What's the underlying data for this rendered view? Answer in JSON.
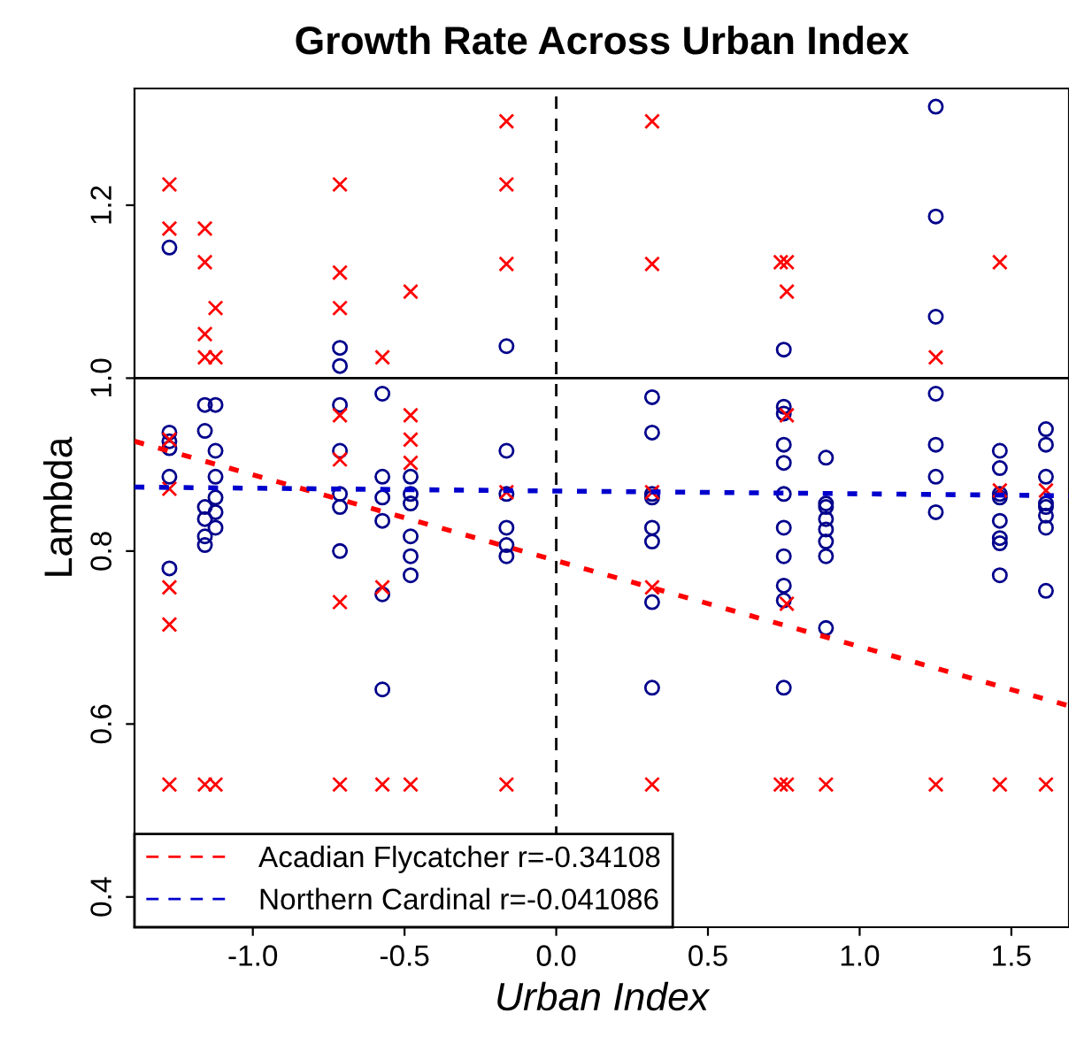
{
  "chart_data": {
    "type": "scatter",
    "title": "Growth Rate Across Urban Index",
    "xlabel": "Urban Index",
    "ylabel": "Lambda",
    "xlim": [
      -1.39,
      1.69
    ],
    "ylim": [
      0.365,
      1.335
    ],
    "xticks": [
      {
        "value": -1,
        "label": "-1.0"
      },
      {
        "value": -0.5,
        "label": "-0.5"
      },
      {
        "value": 0,
        "label": "0.0"
      },
      {
        "value": 0.5,
        "label": "0.5"
      },
      {
        "value": 1,
        "label": "1.0"
      },
      {
        "value": 1.5,
        "label": "1.5"
      }
    ],
    "yticks": [
      0.4,
      0.6,
      0.8,
      {
        "value": 1,
        "label": "1.0"
      },
      1.2
    ],
    "grid": false,
    "legend": "bottom left",
    "ref_lines": [
      {
        "axis": "y",
        "value": 1,
        "color": "#000000",
        "line_style": "solid"
      },
      {
        "axis": "x",
        "value": 0,
        "color": "#000000",
        "line_style": "dashed"
      }
    ],
    "series": [
      {
        "marker": "cross",
        "color": "#ff0000",
        "x": [
          -1.275,
          -1.275,
          -1.275,
          -1.275,
          -1.275,
          -1.275,
          -1.275,
          -1.158,
          -1.158,
          -1.158,
          -1.158,
          -1.158,
          -1.123,
          -1.123,
          -1.123,
          -0.713,
          -0.713,
          -0.713,
          -0.713,
          -0.713,
          -0.713,
          -0.713,
          -0.573,
          -0.573,
          -0.573,
          -0.48,
          -0.48,
          -0.48,
          -0.48,
          -0.48,
          -0.164,
          -0.164,
          -0.164,
          -0.164,
          -0.164,
          0.316,
          0.316,
          0.316,
          0.316,
          0.316,
          0.74,
          0.74,
          0.76,
          0.76,
          0.76,
          0.76,
          0.76,
          0.889,
          1.251,
          1.251,
          1.462,
          1.462,
          1.462,
          1.614,
          1.614
        ],
        "values": [
          1.224,
          1.173,
          0.929,
          0.872,
          0.758,
          0.715,
          0.53,
          1.173,
          1.134,
          1.051,
          1.024,
          0.53,
          1.081,
          1.024,
          0.53,
          1.224,
          1.122,
          1.081,
          0.957,
          0.906,
          0.741,
          0.53,
          1.024,
          0.758,
          0.53,
          1.1,
          0.957,
          0.929,
          0.902,
          0.53,
          1.297,
          1.224,
          1.132,
          0.868,
          0.53,
          1.297,
          1.132,
          0.868,
          0.758,
          0.53,
          1.134,
          0.53,
          1.134,
          1.1,
          0.957,
          0.739,
          0.53,
          0.53,
          1.024,
          0.53,
          1.134,
          0.87,
          0.53,
          0.87,
          0.53
        ]
      },
      {
        "marker": "circle",
        "color": "#00008b",
        "x": [
          -1.275,
          -1.275,
          -1.275,
          -1.275,
          -1.275,
          -1.275,
          -1.158,
          -1.158,
          -1.158,
          -1.158,
          -1.158,
          -1.158,
          -1.123,
          -1.123,
          -1.123,
          -1.123,
          -1.123,
          -1.123,
          -0.713,
          -0.713,
          -0.713,
          -0.713,
          -0.713,
          -0.713,
          -0.713,
          -0.573,
          -0.573,
          -0.573,
          -0.573,
          -0.573,
          -0.573,
          -0.48,
          -0.48,
          -0.48,
          -0.48,
          -0.48,
          -0.48,
          -0.164,
          -0.164,
          -0.164,
          -0.164,
          -0.164,
          -0.164,
          0.316,
          0.316,
          0.316,
          0.316,
          0.316,
          0.316,
          0.316,
          0.316,
          0.75,
          0.75,
          0.75,
          0.75,
          0.75,
          0.75,
          0.75,
          0.75,
          0.75,
          0.75,
          0.75,
          0.889,
          0.889,
          0.889,
          0.889,
          0.889,
          0.889,
          0.889,
          0.889,
          1.251,
          1.251,
          1.251,
          1.251,
          1.251,
          1.251,
          1.251,
          1.462,
          1.462,
          1.462,
          1.462,
          1.462,
          1.462,
          1.462,
          1.462,
          1.614,
          1.614,
          1.614,
          1.614,
          1.614,
          1.614,
          1.614,
          1.614
        ],
        "values": [
          1.151,
          0.937,
          0.927,
          0.919,
          0.886,
          0.78,
          0.969,
          0.939,
          0.851,
          0.837,
          0.817,
          0.807,
          0.969,
          0.916,
          0.886,
          0.862,
          0.845,
          0.827,
          1.035,
          1.014,
          0.969,
          0.916,
          0.866,
          0.851,
          0.8,
          0.982,
          0.886,
          0.862,
          0.835,
          0.75,
          0.64,
          0.886,
          0.866,
          0.855,
          0.817,
          0.794,
          0.772,
          1.037,
          0.916,
          0.866,
          0.827,
          0.807,
          0.794,
          0.978,
          0.937,
          0.866,
          0.862,
          0.827,
          0.811,
          0.741,
          0.642,
          1.033,
          0.967,
          0.959,
          0.923,
          0.902,
          0.866,
          0.827,
          0.794,
          0.76,
          0.743,
          0.642,
          0.908,
          0.855,
          0.851,
          0.837,
          0.825,
          0.811,
          0.794,
          0.711,
          1.314,
          1.187,
          1.071,
          0.982,
          0.923,
          0.886,
          0.845,
          0.916,
          0.896,
          0.866,
          0.862,
          0.835,
          0.815,
          0.809,
          0.772,
          0.941,
          0.923,
          0.886,
          0.855,
          0.851,
          0.841,
          0.827,
          0.754
        ]
      },
      {
        "type": "line",
        "name": "Acadian Flycatcher r=-0.34108",
        "color": "#ff0000",
        "line_style": "dotted",
        "x": [
          -1.39,
          1.69
        ],
        "values": [
          0.927,
          0.621
        ]
      },
      {
        "type": "line",
        "name": "Northern Cardinal r=-0.041086",
        "color": "#0000cd",
        "line_style": "dotted",
        "x": [
          -1.39,
          1.69
        ],
        "values": [
          0.874,
          0.864
        ]
      }
    ]
  }
}
